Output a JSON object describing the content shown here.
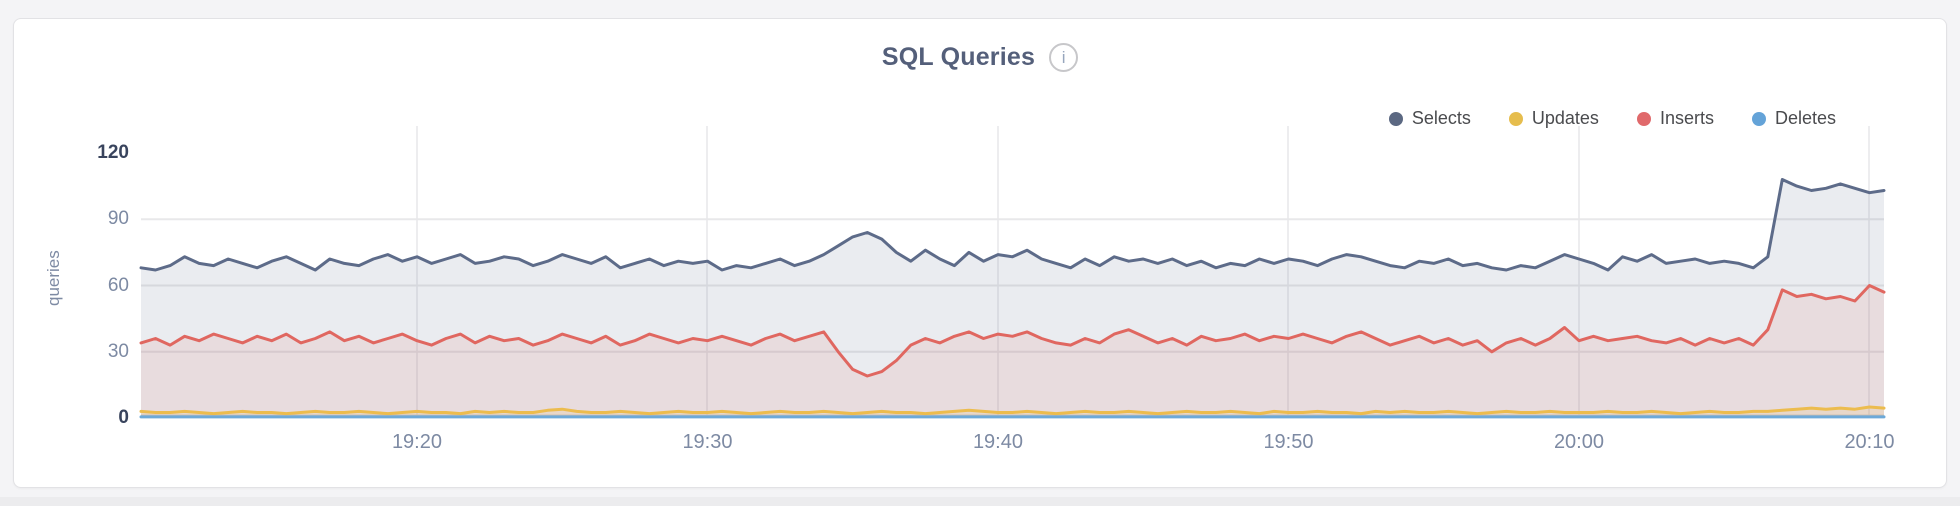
{
  "page": {
    "background": "#f4f4f6",
    "card_background": "#ffffff",
    "bottom_strip_color": "#ececee"
  },
  "header": {
    "title": "SQL Queries",
    "info_icon_glyph": "i"
  },
  "legend": [
    {
      "label": "Selects",
      "color": "#5b6882"
    },
    {
      "label": "Updates",
      "color": "#e6bd4d"
    },
    {
      "label": "Inserts",
      "color": "#e0696b"
    },
    {
      "label": "Deletes",
      "color": "#64a3d8"
    }
  ],
  "chart_data": {
    "type": "area",
    "title": "SQL Queries",
    "ylabel": "queries",
    "ylim": [
      0,
      120
    ],
    "yticks": [
      0,
      30,
      60,
      90,
      120
    ],
    "grid": true,
    "legend_position": "top-right",
    "xticks": [
      "19:20",
      "19:30",
      "19:40",
      "19:50",
      "20:00",
      "20:10"
    ],
    "tick_indices": [
      19,
      39,
      59,
      79,
      99,
      119
    ],
    "x_start": "19:10:30",
    "x_end": "20:10:30",
    "interval_seconds": 30,
    "axis": {
      "tick_color": "#7d8aa3",
      "extreme_tick_color": "#39445d",
      "hgrid_color": "#e8e8ea",
      "vgrid_color": "#ededef",
      "zero_line_color": "#dcdcdf"
    },
    "series": [
      {
        "name": "Selects",
        "color": "#5d6b89",
        "fill": "rgba(93,107,137,0.13)",
        "values": [
          68,
          67,
          69,
          73,
          70,
          69,
          72,
          70,
          68,
          71,
          73,
          70,
          67,
          72,
          70,
          69,
          72,
          74,
          71,
          73,
          70,
          72,
          74,
          70,
          71,
          73,
          72,
          69,
          71,
          74,
          72,
          70,
          73,
          68,
          70,
          72,
          69,
          71,
          70,
          71,
          67,
          69,
          68,
          70,
          72,
          69,
          71,
          74,
          78,
          82,
          84,
          81,
          75,
          71,
          76,
          72,
          69,
          75,
          71,
          74,
          73,
          76,
          72,
          70,
          68,
          72,
          69,
          73,
          71,
          72,
          70,
          72,
          69,
          71,
          68,
          70,
          69,
          72,
          70,
          72,
          71,
          69,
          72,
          74,
          73,
          71,
          69,
          68,
          71,
          70,
          72,
          69,
          70,
          68,
          67,
          69,
          68,
          71,
          74,
          72,
          70,
          67,
          73,
          71,
          74,
          70,
          71,
          72,
          70,
          71,
          70,
          68,
          73,
          108,
          105,
          103,
          104,
          106,
          104,
          102,
          103
        ]
      },
      {
        "name": "Inserts",
        "color": "#e06760",
        "fill": "rgba(224,103,96,0.12)",
        "values": [
          34,
          36,
          33,
          37,
          35,
          38,
          36,
          34,
          37,
          35,
          38,
          34,
          36,
          39,
          35,
          37,
          34,
          36,
          38,
          35,
          33,
          36,
          38,
          34,
          37,
          35,
          36,
          33,
          35,
          38,
          36,
          34,
          37,
          33,
          35,
          38,
          36,
          34,
          36,
          35,
          37,
          35,
          33,
          36,
          38,
          35,
          37,
          39,
          30,
          22,
          19,
          21,
          26,
          33,
          36,
          34,
          37,
          39,
          36,
          38,
          37,
          39,
          36,
          34,
          33,
          36,
          34,
          38,
          40,
          37,
          34,
          36,
          33,
          37,
          35,
          36,
          38,
          35,
          37,
          36,
          38,
          36,
          34,
          37,
          39,
          36,
          33,
          35,
          37,
          34,
          36,
          33,
          35,
          30,
          34,
          36,
          33,
          36,
          41,
          35,
          37,
          35,
          36,
          37,
          35,
          34,
          36,
          33,
          36,
          34,
          36,
          33,
          40,
          58,
          55,
          56,
          54,
          55,
          53,
          60,
          57
        ]
      },
      {
        "name": "Updates",
        "color": "#ecbc4e",
        "fill": "rgba(236,188,78,0.15)",
        "values": [
          3,
          2.5,
          2.5,
          3,
          2.5,
          2,
          2.5,
          3,
          2.5,
          2.5,
          2,
          2.5,
          3,
          2.5,
          2.5,
          3,
          2.5,
          2,
          2.5,
          3,
          2.5,
          2.5,
          2,
          3,
          2.5,
          3,
          2.5,
          2.5,
          3.5,
          4,
          3,
          2.5,
          2.5,
          3,
          2.5,
          2,
          2.5,
          3,
          2.5,
          2.5,
          3,
          2.5,
          2,
          2.5,
          3,
          2.5,
          2.5,
          3,
          2.5,
          2,
          2.5,
          3,
          2.5,
          2.5,
          2,
          2.5,
          3,
          3.5,
          3,
          2.5,
          2.5,
          3,
          2.5,
          2,
          2.5,
          3,
          2.5,
          2.5,
          3,
          2.5,
          2,
          2.5,
          3,
          2.5,
          2.5,
          3,
          2.5,
          2,
          3,
          2.5,
          2.5,
          3,
          2.5,
          2.5,
          2,
          3,
          2.5,
          3,
          2.5,
          2.5,
          3,
          2.5,
          2,
          2.5,
          3,
          2.5,
          2.5,
          3,
          2.5,
          2.5,
          2.5,
          3,
          2.5,
          2.5,
          3,
          2.5,
          2,
          2.5,
          3,
          2.5,
          2.5,
          3,
          3,
          3.5,
          4,
          4.5,
          4,
          4.5,
          4,
          5,
          4.5
        ]
      },
      {
        "name": "Deletes",
        "color": "#6da9d8",
        "fill": "rgba(109,169,216,0.25)",
        "values": [
          0.5,
          0.5,
          0.5,
          0.5,
          0.5,
          0.5,
          0.5,
          0.5,
          0.5,
          0.5,
          0.5,
          0.5,
          0.5,
          0.5,
          0.5,
          0.5,
          0.5,
          0.5,
          0.5,
          0.5,
          0.5,
          0.5,
          0.5,
          0.5,
          0.5,
          0.5,
          0.5,
          0.5,
          0.5,
          0.5,
          0.5,
          0.5,
          0.5,
          0.5,
          0.5,
          0.5,
          0.5,
          0.5,
          0.5,
          0.5,
          0.5,
          0.5,
          0.5,
          0.5,
          0.5,
          0.5,
          0.5,
          0.5,
          0.5,
          0.5,
          0.5,
          0.5,
          0.5,
          0.5,
          0.5,
          0.5,
          0.5,
          0.5,
          0.5,
          0.5,
          0.5,
          0.5,
          0.5,
          0.5,
          0.5,
          0.5,
          0.5,
          0.5,
          0.5,
          0.5,
          0.5,
          0.5,
          0.5,
          0.5,
          0.5,
          0.5,
          0.5,
          0.5,
          0.5,
          0.5,
          0.5,
          0.5,
          0.5,
          0.5,
          0.5,
          0.5,
          0.5,
          0.5,
          0.5,
          0.5,
          0.5,
          0.5,
          0.5,
          0.5,
          0.5,
          0.5,
          0.5,
          0.5,
          0.5,
          0.5,
          0.5,
          0.5,
          0.5,
          0.5,
          0.5,
          0.5,
          0.5,
          0.5,
          0.5,
          0.5,
          0.5,
          0.5,
          0.5,
          0.5,
          0.5,
          0.5,
          0.5,
          0.5,
          0.5,
          0.5,
          0.5
        ]
      }
    ]
  }
}
